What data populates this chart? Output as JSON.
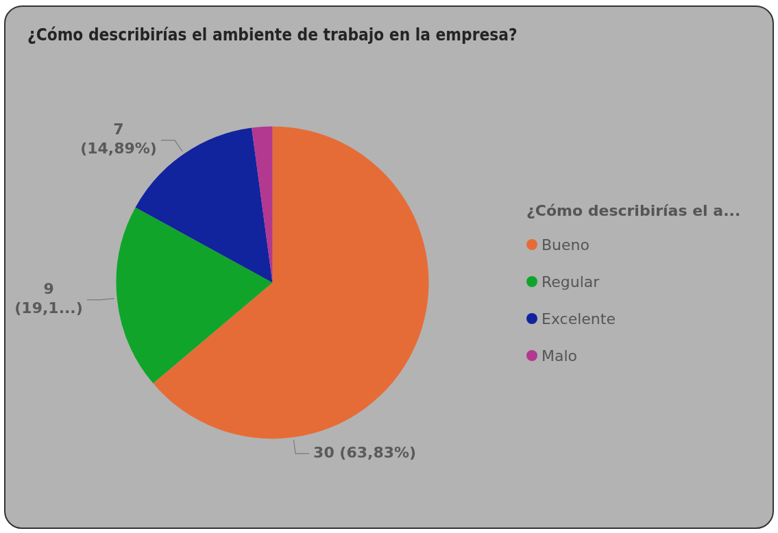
{
  "chart_data": {
    "type": "pie",
    "title": "¿Cómo describirías el ambiente de trabajo en la empresa?",
    "legend_title": "¿Cómo describirías el a...",
    "legend": "right",
    "categories": [
      "Bueno",
      "Regular",
      "Excelente",
      "Malo"
    ],
    "values": [
      30,
      9,
      7,
      1
    ],
    "colors": [
      "#e66c37",
      "#10a52a",
      "#12239e",
      "#b3388f"
    ],
    "value_labels": [
      "30 (63,83%)",
      "9 (19,1...)",
      "7 (14,89%)",
      null
    ]
  }
}
